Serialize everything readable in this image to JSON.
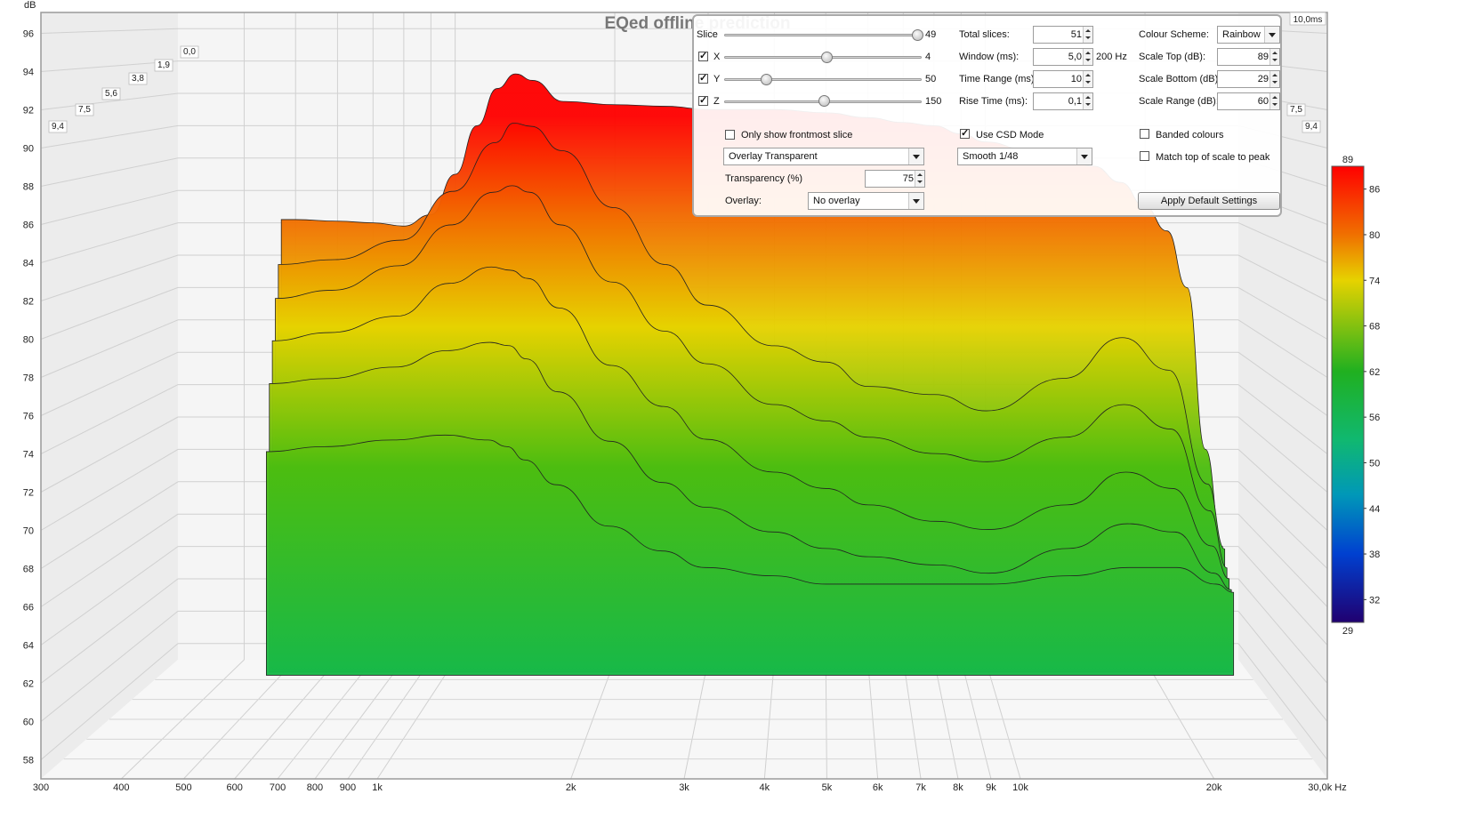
{
  "chart_data": {
    "type": "area",
    "title": "EQed offline prediction",
    "ylabel": "dB",
    "yticks": [
      "96",
      "94",
      "92",
      "90",
      "88",
      "86",
      "84",
      "82",
      "80",
      "78",
      "76",
      "74",
      "72",
      "70",
      "68",
      "66",
      "64",
      "62",
      "60",
      "58"
    ],
    "xticks": [
      "300",
      "400",
      "500",
      "600",
      "700",
      "800",
      "900",
      "1k",
      "2k",
      "3k",
      "4k",
      "5k",
      "6k",
      "7k",
      "8k",
      "9k",
      "10k",
      "20k",
      "30,0k Hz"
    ],
    "x_scale": "log",
    "xlim": [
      300,
      30000
    ],
    "ylim": [
      57,
      97
    ],
    "z_ticks_left": [
      "9,4",
      "7,5",
      "5,6",
      "3,8",
      "1,9",
      "0,0"
    ],
    "z_ticks_right": [
      "7,5",
      "9,4"
    ],
    "z_end_label": "10,0ms",
    "slice_times_ms": [
      0.0,
      1.9,
      3.8,
      5.6,
      7.5,
      9.4
    ],
    "series": [
      {
        "name": "0,0",
        "x": [
          470,
          500,
          600,
          700,
          800,
          900,
          1000,
          1100,
          1200,
          1300,
          1400,
          1600,
          2000,
          2500,
          3000,
          4000,
          5000,
          6000,
          7000,
          8000,
          9000,
          10000,
          12000,
          14000,
          16000,
          18000,
          20000,
          22000,
          24000,
          26000,
          28000
        ],
        "values": [
          84.2,
          84.2,
          84.1,
          84.0,
          83.8,
          84.5,
          87.0,
          90.0,
          92.3,
          93.2,
          92.8,
          91.5,
          91.3,
          91.2,
          91.0,
          91.0,
          90.8,
          90.5,
          90.2,
          90.0,
          89.5,
          89.0,
          88.5,
          88.0,
          87.5,
          86.5,
          85.0,
          83.5,
          80.0,
          70.0,
          64.0
        ]
      },
      {
        "name": "1,9",
        "x": [
          470,
          600,
          800,
          1000,
          1200,
          1300,
          1400,
          1600,
          2000,
          2500,
          3000,
          4000,
          5000,
          6000,
          8000,
          10000,
          14000,
          18000,
          22000,
          26000,
          28000
        ],
        "values": [
          81.5,
          81.8,
          83.0,
          86.0,
          89.0,
          90.2,
          90.0,
          88.5,
          85.0,
          81.5,
          79.0,
          76.5,
          75.5,
          74.0,
          73.5,
          72.5,
          74.5,
          77.0,
          75.0,
          68.0,
          64.0
        ]
      },
      {
        "name": "3,8",
        "x": [
          470,
          600,
          800,
          1000,
          1200,
          1300,
          1400,
          1600,
          2000,
          2500,
          3000,
          4000,
          5000,
          6000,
          8000,
          10000,
          14000,
          18000,
          22000,
          26000,
          28000
        ],
        "values": [
          79.5,
          80.0,
          81.5,
          84.0,
          86.0,
          86.4,
          86.0,
          84.0,
          80.5,
          77.5,
          75.5,
          73.0,
          72.0,
          71.0,
          70.0,
          69.5,
          71.0,
          73.0,
          71.5,
          66.5,
          63.0
        ]
      },
      {
        "name": "5,6",
        "x": [
          470,
          600,
          800,
          1000,
          1200,
          1300,
          1400,
          1600,
          2000,
          2500,
          3000,
          4000,
          5000,
          6000,
          8000,
          10000,
          14000,
          18000,
          22000,
          26000,
          28000
        ],
        "values": [
          77.0,
          77.5,
          78.5,
          80.5,
          81.5,
          81.3,
          80.8,
          79.0,
          75.5,
          73.0,
          71.0,
          69.0,
          68.0,
          67.0,
          66.0,
          65.5,
          67.0,
          69.0,
          68.0,
          64.5,
          62.5
        ]
      },
      {
        "name": "7,5",
        "x": [
          470,
          600,
          800,
          1000,
          1200,
          1300,
          1400,
          1600,
          2000,
          2500,
          3000,
          4000,
          5000,
          6000,
          8000,
          10000,
          14000,
          18000,
          22000,
          26000,
          28000
        ],
        "values": [
          74.5,
          74.8,
          75.5,
          76.5,
          77.0,
          76.8,
          76.0,
          74.0,
          71.0,
          68.5,
          67.0,
          65.5,
          64.5,
          64.0,
          63.5,
          63.0,
          64.5,
          66.0,
          65.5,
          63.0,
          62.0
        ]
      },
      {
        "name": "9,4",
        "x": [
          470,
          600,
          800,
          1000,
          1200,
          1300,
          1400,
          1600,
          2000,
          2500,
          3000,
          4000,
          5000,
          6000,
          8000,
          10000,
          14000,
          18000,
          22000,
          26000,
          28000
        ],
        "values": [
          70.5,
          70.8,
          71.2,
          71.5,
          71.2,
          70.8,
          70.0,
          68.5,
          66.0,
          64.5,
          63.5,
          63.0,
          62.5,
          62.5,
          62.5,
          62.5,
          63.0,
          63.5,
          63.5,
          62.5,
          62.0
        ]
      }
    ],
    "colorbar": {
      "top_label": "89",
      "bottom_label": "29",
      "ticks": [
        "86",
        "80",
        "74",
        "68",
        "62",
        "56",
        "50",
        "44",
        "38",
        "32"
      ],
      "tick_values": [
        86,
        80,
        74,
        68,
        62,
        56,
        50,
        44,
        38,
        32
      ],
      "min": 29,
      "max": 89
    },
    "grid": true,
    "legend": "right"
  },
  "colors": {
    "red": "#ff0000",
    "orange": "#f07000",
    "yellow": "#e6d200",
    "green": "#10b820",
    "teal": "#00a0a0",
    "blue": "#0040d0",
    "navy": "#200070",
    "grid": "#c8c8c8",
    "frame": "#9a9a9a",
    "wall": "#f0f0f0"
  },
  "controls": {
    "slice_label": "Slice",
    "slice_value": "49",
    "x_label": "X",
    "x_value": "4",
    "y_label": "Y",
    "y_value": "50",
    "z_label": "Z",
    "z_value": "150",
    "total_slices_label": "Total slices:",
    "total_slices_value": "51",
    "window_label": "Window (ms):",
    "window_value": "5,0",
    "window_hz": "200 Hz",
    "time_range_label": "Time Range (ms):",
    "time_range_value": "10",
    "rise_time_label": "Rise Time (ms):",
    "rise_time_value": "0,1",
    "colour_scheme_label": "Colour Scheme:",
    "colour_scheme_value": "Rainbow",
    "scale_top_label": "Scale Top (dB):",
    "scale_top_value": "89",
    "scale_bottom_label": "Scale Bottom (dB):",
    "scale_bottom_value": "29",
    "scale_range_label": "Scale Range (dB):",
    "scale_range_value": "60",
    "frontmost_label": "Only show frontmost slice",
    "csd_label": "Use CSD Mode",
    "banded_label": "Banded colours",
    "match_label": "Match top of scale to peak",
    "overlay_mode_value": "Overlay Transparent",
    "smoothing_value": "Smooth 1/48",
    "transparency_label": "Transparency (%)",
    "transparency_value": "75",
    "overlay_label": "Overlay:",
    "overlay_value": "No overlay",
    "apply_button": "Apply Default Settings",
    "x_checked": true,
    "y_checked": true,
    "z_checked": true,
    "frontmost_checked": false,
    "csd_checked": true,
    "banded_checked": false,
    "match_checked": false
  }
}
